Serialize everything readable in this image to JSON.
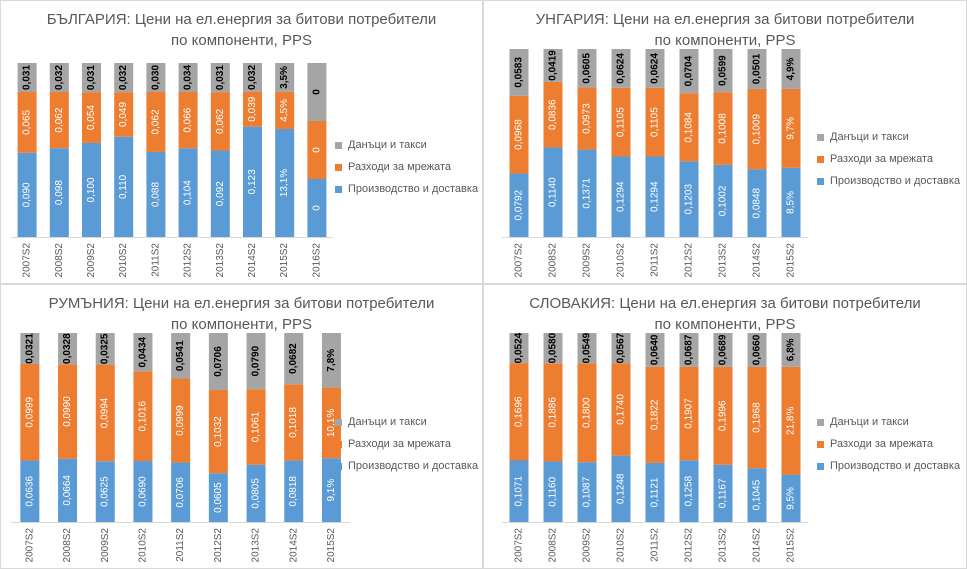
{
  "colors": {
    "production": "#5b9bd5",
    "network": "#ed7d31",
    "taxes": "#a5a5a5",
    "panel_border": "#d9d9d9",
    "text": "#595959"
  },
  "chart_data": [
    {
      "type": "bar",
      "stacked": true,
      "percent_stacked": true,
      "title": "БЪЛГАРИЯ: Цени на ел.енергия за битови потребители",
      "subtitle": "по компоненти, PPS",
      "categories": [
        "2007S2",
        "2008S2",
        "2009S2",
        "2010S2",
        "2011S2",
        "2012S2",
        "2013S2",
        "2014S2",
        "2015S2",
        "2016S2"
      ],
      "series": [
        {
          "name": "Производство и доставка",
          "color": "#5b9bd5",
          "values": [
            0.09,
            0.098,
            0.1,
            0.11,
            0.088,
            0.104,
            0.092,
            0.123,
            13.1,
            0
          ],
          "labels": [
            "0,090",
            "0,098",
            "0,100",
            "0,110",
            "0,088",
            "0,104",
            "0,092",
            "0,123",
            "13,1%",
            "0"
          ]
        },
        {
          "name": "Разходи за мрежата",
          "color": "#ed7d31",
          "values": [
            0.065,
            0.062,
            0.054,
            0.049,
            0.062,
            0.066,
            0.062,
            0.039,
            4.5,
            0
          ],
          "labels": [
            "0,065",
            "0,062",
            "0,054",
            "0,049",
            "0,062",
            "0,066",
            "0,062",
            "0,039",
            "4,5%",
            "0"
          ]
        },
        {
          "name": "Данъци и такси",
          "color": "#a5a5a5",
          "values": [
            0.031,
            0.032,
            0.031,
            0.032,
            0.03,
            0.034,
            0.031,
            0.032,
            3.5,
            0
          ],
          "labels": [
            "0,031",
            "0,032",
            "0,031",
            "0,032",
            "0,030",
            "0,034",
            "0,031",
            "0,032",
            "3,5%",
            "0"
          ]
        }
      ],
      "legend": "right",
      "grid": false
    },
    {
      "type": "bar",
      "stacked": true,
      "percent_stacked": true,
      "title": "УНГАРИЯ: Цени на ел.енергия за битови потребители",
      "subtitle": "по компоненти, PPS",
      "categories": [
        "2007S2",
        "2008S2",
        "2009S2",
        "2010S2",
        "2011S2",
        "2012S2",
        "2013S2",
        "2014S2",
        "2015S2"
      ],
      "series": [
        {
          "name": "Производство и доставка",
          "color": "#5b9bd5",
          "values": [
            0.0792,
            0.114,
            0.1371,
            0.1294,
            0.1294,
            0.1203,
            0.1002,
            0.0848,
            8.5
          ],
          "labels": [
            "0,0792",
            "0,1140",
            "0,1371",
            "0,1294",
            "0,1294",
            "0,1203",
            "0,1002",
            "0,0848",
            "8,5%"
          ]
        },
        {
          "name": "Разходи за мрежата",
          "color": "#ed7d31",
          "values": [
            0.0968,
            0.0836,
            0.0973,
            0.1105,
            0.1105,
            0.1084,
            0.1008,
            0.1009,
            9.7
          ],
          "labels": [
            "0,0968",
            "0,0836",
            "0,0973",
            "0,1105",
            "0,1105",
            "0,1084",
            "0,1008",
            "0,1009",
            "9,7%"
          ]
        },
        {
          "name": "Данъци и такси",
          "color": "#a5a5a5",
          "values": [
            0.0583,
            0.0419,
            0.0605,
            0.0624,
            0.0624,
            0.0704,
            0.0599,
            0.0501,
            4.9
          ],
          "labels": [
            "0,0583",
            "0,0419",
            "0,0605",
            "0,0624",
            "0,0624",
            "0,0704",
            "0,0599",
            "0,0501",
            "4,9%"
          ]
        }
      ],
      "legend": "right",
      "grid": false
    },
    {
      "type": "bar",
      "stacked": true,
      "percent_stacked": true,
      "title": "РУМЪНИЯ: Цени на ел.енергия за битови потребители",
      "subtitle": "по компоненти, PPS",
      "categories": [
        "2007S2",
        "2008S2",
        "2009S2",
        "2010S2",
        "2011S2",
        "2012S2",
        "2013S2",
        "2014S2",
        "2015S2"
      ],
      "series": [
        {
          "name": "Производство и доставка",
          "color": "#5b9bd5",
          "values": [
            0.0636,
            0.0664,
            0.0625,
            0.069,
            0.0706,
            0.0605,
            0.0805,
            0.0818,
            9.1
          ],
          "labels": [
            "0,0636",
            "0,0664",
            "0,0625",
            "0,0690",
            "0,0706",
            "0,0605",
            "0,0805",
            "0,0818",
            "9,1%"
          ]
        },
        {
          "name": "Разходи за мрежата",
          "color": "#ed7d31",
          "values": [
            0.0999,
            0.099,
            0.0994,
            0.1016,
            0.0999,
            0.1032,
            0.1061,
            0.1018,
            10.1
          ],
          "labels": [
            "0,0999",
            "0,0990",
            "0,0994",
            "0,1016",
            "0,0999",
            "0,1032",
            "0,1061",
            "0,1018",
            "10,1%"
          ]
        },
        {
          "name": "Данъци и такси",
          "color": "#a5a5a5",
          "values": [
            0.0321,
            0.0328,
            0.0325,
            0.0434,
            0.0541,
            0.0706,
            0.079,
            0.0682,
            7.8
          ],
          "labels": [
            "0,0321",
            "0,0328",
            "0,0325",
            "0,0434",
            "0,0541",
            "0,0706",
            "0,0790",
            "0,0682",
            "7,8%"
          ]
        }
      ],
      "legend": "right",
      "grid": false
    },
    {
      "type": "bar",
      "stacked": true,
      "percent_stacked": true,
      "title": "СЛОВАКИЯ: Цени на ел.енергия за битови потребители",
      "subtitle": "по компоненти, PPS",
      "categories": [
        "2007S2",
        "2008S2",
        "2009S2",
        "2010S2",
        "2011S2",
        "2012S2",
        "2013S2",
        "2014S2",
        "2015S2"
      ],
      "series": [
        {
          "name": "Производство и доставка",
          "color": "#5b9bd5",
          "values": [
            0.1071,
            0.116,
            0.1087,
            0.1248,
            0.1121,
            0.1258,
            0.1167,
            0.1045,
            9.5
          ],
          "labels": [
            "0,1071",
            "0,1160",
            "0,1087",
            "0,1248",
            "0,1121",
            "0,1258",
            "0,1167",
            "0,1045",
            "9,5%"
          ]
        },
        {
          "name": "Разходи за мрежата",
          "color": "#ed7d31",
          "values": [
            0.1696,
            0.1886,
            0.18,
            0.174,
            0.1822,
            0.1907,
            0.1996,
            0.1968,
            21.8
          ],
          "labels": [
            "0,1696",
            "0,1886",
            "0,1800",
            "0,1740",
            "0,1822",
            "0,1907",
            "0,1996",
            "0,1968",
            "21,8%"
          ]
        },
        {
          "name": "Данъци и такси",
          "color": "#a5a5a5",
          "values": [
            0.0524,
            0.058,
            0.0549,
            0.0567,
            0.064,
            0.0687,
            0.0689,
            0.066,
            6.8
          ],
          "labels": [
            "0,0524",
            "0,0580",
            "0,0549",
            "0,0567",
            "0,0640",
            "0,0687",
            "0,0689",
            "0,0660",
            "6,8%"
          ]
        }
      ],
      "legend": "right",
      "grid": false
    }
  ]
}
